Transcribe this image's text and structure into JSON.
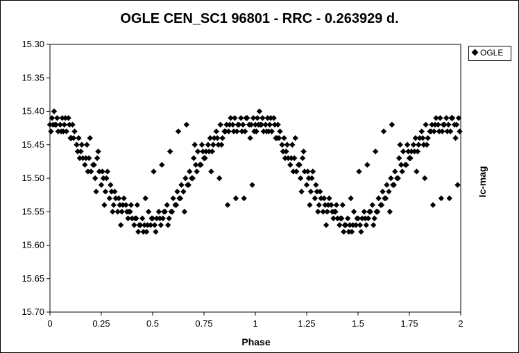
{
  "chart_data": {
    "type": "scatter",
    "title": "OGLE CEN_SC1 96801 - RRC - 0.263929 d.",
    "xlabel": "Phase",
    "ylabel": "Ic-mag",
    "xlim": [
      0,
      2
    ],
    "ylim": [
      15.3,
      15.7
    ],
    "y_inverted": true,
    "x_ticks": [
      "0",
      "0.25",
      "0.5",
      "0.75",
      "1",
      "1.25",
      "1.5",
      "1.75",
      "2"
    ],
    "x_tick_values": [
      0,
      0.25,
      0.5,
      0.75,
      1,
      1.25,
      1.5,
      1.75,
      2
    ],
    "y_ticks": [
      "15.30",
      "15.35",
      "15.40",
      "15.45",
      "15.50",
      "15.55",
      "15.60",
      "15.65",
      "15.70"
    ],
    "y_tick_values": [
      15.3,
      15.35,
      15.4,
      15.45,
      15.5,
      15.55,
      15.6,
      15.65,
      15.7
    ],
    "grid": false,
    "legend_position": "top-right",
    "series": [
      {
        "name": "OGLE",
        "marker": "diamond",
        "color": "#000000",
        "phase": [
          0.0,
          0.01,
          0.02,
          0.03,
          0.04,
          0.05,
          0.06,
          0.07,
          0.08,
          0.09,
          0.1,
          0.11,
          0.12,
          0.13,
          0.14,
          0.15,
          0.16,
          0.17,
          0.18,
          0.19,
          0.2,
          0.21,
          0.22,
          0.23,
          0.24,
          0.25,
          0.26,
          0.27,
          0.28,
          0.29,
          0.3,
          0.31,
          0.32,
          0.33,
          0.34,
          0.35,
          0.36,
          0.37,
          0.38,
          0.39,
          0.4,
          0.41,
          0.42,
          0.43,
          0.44,
          0.45,
          0.46,
          0.47,
          0.48,
          0.49,
          0.5,
          0.51,
          0.52,
          0.53,
          0.54,
          0.55,
          0.56,
          0.57,
          0.58,
          0.59,
          0.6,
          0.61,
          0.62,
          0.63,
          0.64,
          0.65,
          0.66,
          0.67,
          0.68,
          0.69,
          0.7,
          0.71,
          0.72,
          0.73,
          0.74,
          0.75,
          0.76,
          0.77,
          0.78,
          0.79,
          0.8,
          0.81,
          0.82,
          0.83,
          0.84,
          0.85,
          0.86,
          0.87,
          0.88,
          0.89,
          0.9,
          0.91,
          0.92,
          0.93,
          0.94,
          0.95,
          0.96,
          0.97,
          0.98,
          0.99,
          0.005,
          0.015,
          0.035,
          0.055,
          0.075,
          0.095,
          0.115,
          0.135,
          0.155,
          0.175,
          0.195,
          0.215,
          0.235,
          0.255,
          0.275,
          0.295,
          0.315,
          0.335,
          0.355,
          0.375,
          0.395,
          0.415,
          0.435,
          0.455,
          0.475,
          0.495,
          0.515,
          0.535,
          0.555,
          0.575,
          0.595,
          0.615,
          0.635,
          0.655,
          0.675,
          0.695,
          0.715,
          0.735,
          0.755,
          0.775,
          0.795,
          0.815,
          0.835,
          0.855,
          0.875,
          0.895,
          0.915,
          0.935,
          0.955,
          0.975,
          0.995,
          0.025,
          0.065,
          0.105,
          0.145,
          0.185,
          0.225,
          0.265,
          0.305,
          0.345,
          0.385,
          0.425,
          0.465,
          0.505,
          0.545,
          0.585,
          0.625,
          0.665,
          0.705,
          0.745,
          0.785,
          0.825,
          0.865,
          0.905,
          0.945,
          0.985
        ],
        "mag": [
          15.42,
          15.41,
          15.4,
          15.42,
          15.43,
          15.42,
          15.41,
          15.42,
          15.43,
          15.41,
          15.44,
          15.42,
          15.43,
          15.45,
          15.44,
          15.46,
          15.47,
          15.48,
          15.45,
          15.47,
          15.49,
          15.48,
          15.5,
          15.47,
          15.49,
          15.51,
          15.5,
          15.52,
          15.49,
          15.53,
          15.52,
          15.54,
          15.53,
          15.55,
          15.54,
          15.55,
          15.53,
          15.54,
          15.56,
          15.55,
          15.56,
          15.57,
          15.56,
          15.58,
          15.57,
          15.56,
          15.57,
          15.58,
          15.55,
          15.57,
          15.56,
          15.57,
          15.56,
          15.55,
          15.57,
          15.56,
          15.55,
          15.54,
          15.56,
          15.55,
          15.53,
          15.54,
          15.52,
          15.53,
          15.51,
          15.52,
          15.5,
          15.51,
          15.49,
          15.5,
          15.47,
          15.48,
          15.46,
          15.48,
          15.45,
          15.47,
          15.46,
          15.45,
          15.44,
          15.46,
          15.44,
          15.43,
          15.45,
          15.42,
          15.44,
          15.43,
          15.42,
          15.43,
          15.41,
          15.42,
          15.41,
          15.43,
          15.42,
          15.41,
          15.42,
          15.43,
          15.41,
          15.42,
          15.42,
          15.41,
          15.43,
          15.42,
          15.41,
          15.43,
          15.41,
          15.42,
          15.44,
          15.46,
          15.45,
          15.47,
          15.44,
          15.48,
          15.46,
          15.49,
          15.5,
          15.51,
          15.52,
          15.53,
          15.54,
          15.55,
          15.54,
          15.56,
          15.57,
          15.58,
          15.57,
          15.56,
          15.58,
          15.56,
          15.55,
          15.57,
          15.55,
          15.54,
          15.53,
          15.55,
          15.51,
          15.5,
          15.49,
          15.48,
          15.47,
          15.46,
          15.45,
          15.44,
          15.45,
          15.43,
          15.42,
          15.43,
          15.42,
          15.43,
          15.41,
          15.44,
          15.43,
          15.42,
          15.43,
          15.44,
          15.47,
          15.49,
          15.52,
          15.54,
          15.55,
          15.57,
          15.55,
          15.54,
          15.53,
          15.49,
          15.48,
          15.46,
          15.43,
          15.42,
          15.45,
          15.46,
          15.49,
          15.5,
          15.54,
          15.53,
          15.53,
          15.51
        ]
      }
    ]
  },
  "legend": {
    "label": "OGLE"
  }
}
